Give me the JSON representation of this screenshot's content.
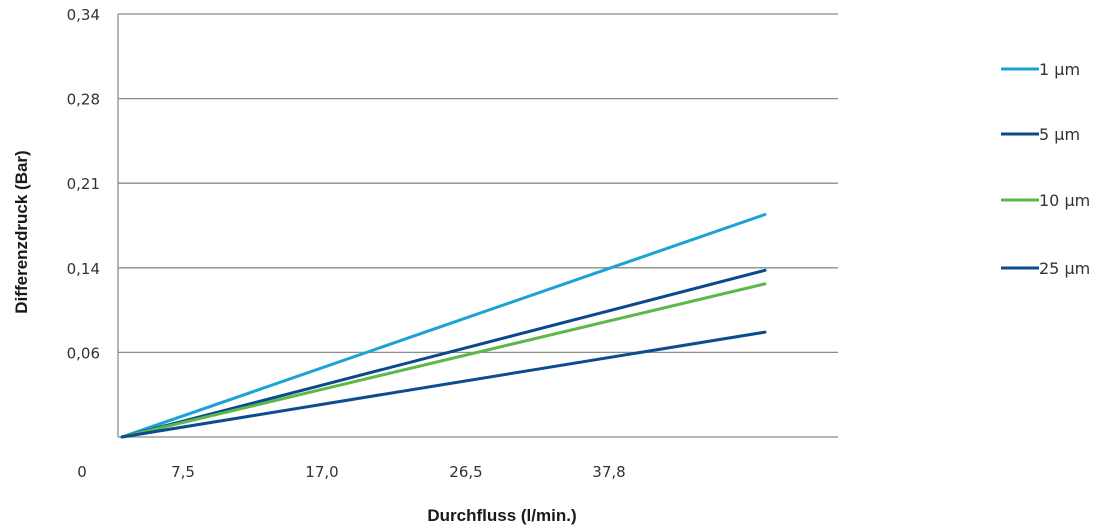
{
  "chart_data": {
    "type": "line",
    "xlabel": "Durchfluss (l/min.)",
    "ylabel": "Differenzdruck (Bar)",
    "x_tick_labels": [
      "0",
      "7,5",
      "17,0",
      "26,5",
      "37,8"
    ],
    "y_tick_labels": [
      "0,06",
      "0,14",
      "0,21",
      "0,28",
      "0,34"
    ],
    "grid": "horizontal",
    "legend_position": "right",
    "series": [
      {
        "name": "1 µm",
        "color": "#1aa3d4",
        "end_level": 2.63
      },
      {
        "name": "5 µm",
        "color": "#0a4a8c",
        "end_level": 1.97
      },
      {
        "name": "10 µm",
        "color": "#5cb84a",
        "end_level": 1.81
      },
      {
        "name": "25 µm",
        "color": "#0d4d8f",
        "end_level": 1.24
      }
    ]
  }
}
